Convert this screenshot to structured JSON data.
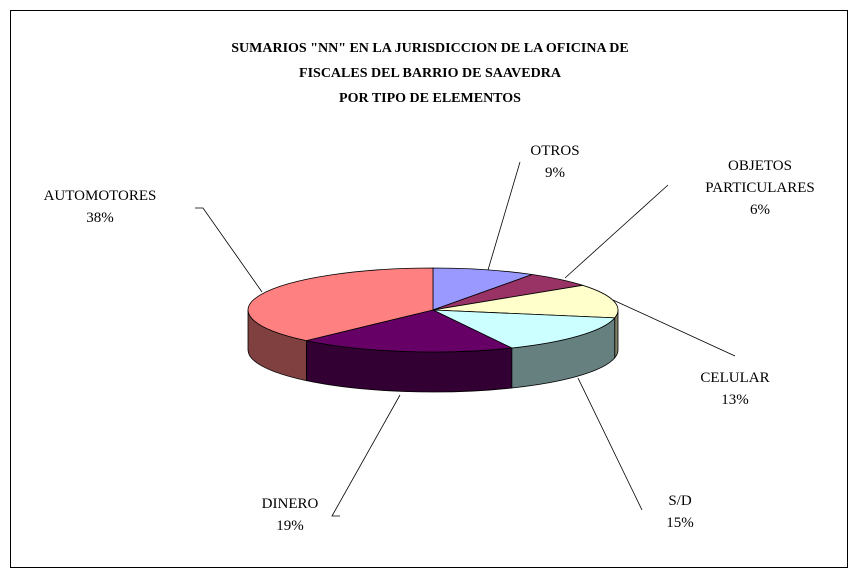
{
  "chart_data": {
    "type": "pie3d",
    "title": [
      "SUMARIOS \"NN\" EN LA JURISDICCION DE LA OFICINA DE",
      "FISCALES DEL BARRIO DE SAAVEDRA",
      "POR TIPO DE ELEMENTOS"
    ],
    "categories": [
      "OTROS",
      "OBJETOS PARTICULARES",
      "CELULAR",
      "S/D",
      "DINERO",
      "AUTOMOTORES"
    ],
    "values": [
      9,
      6,
      13,
      15,
      19,
      38
    ],
    "value_labels": [
      "9%",
      "6%",
      "13%",
      "15%",
      "19%",
      "38%"
    ],
    "colors": [
      "#9999ff",
      "#993366",
      "#ffffcc",
      "#ccffff",
      "#660066",
      "#ff8080"
    ]
  }
}
